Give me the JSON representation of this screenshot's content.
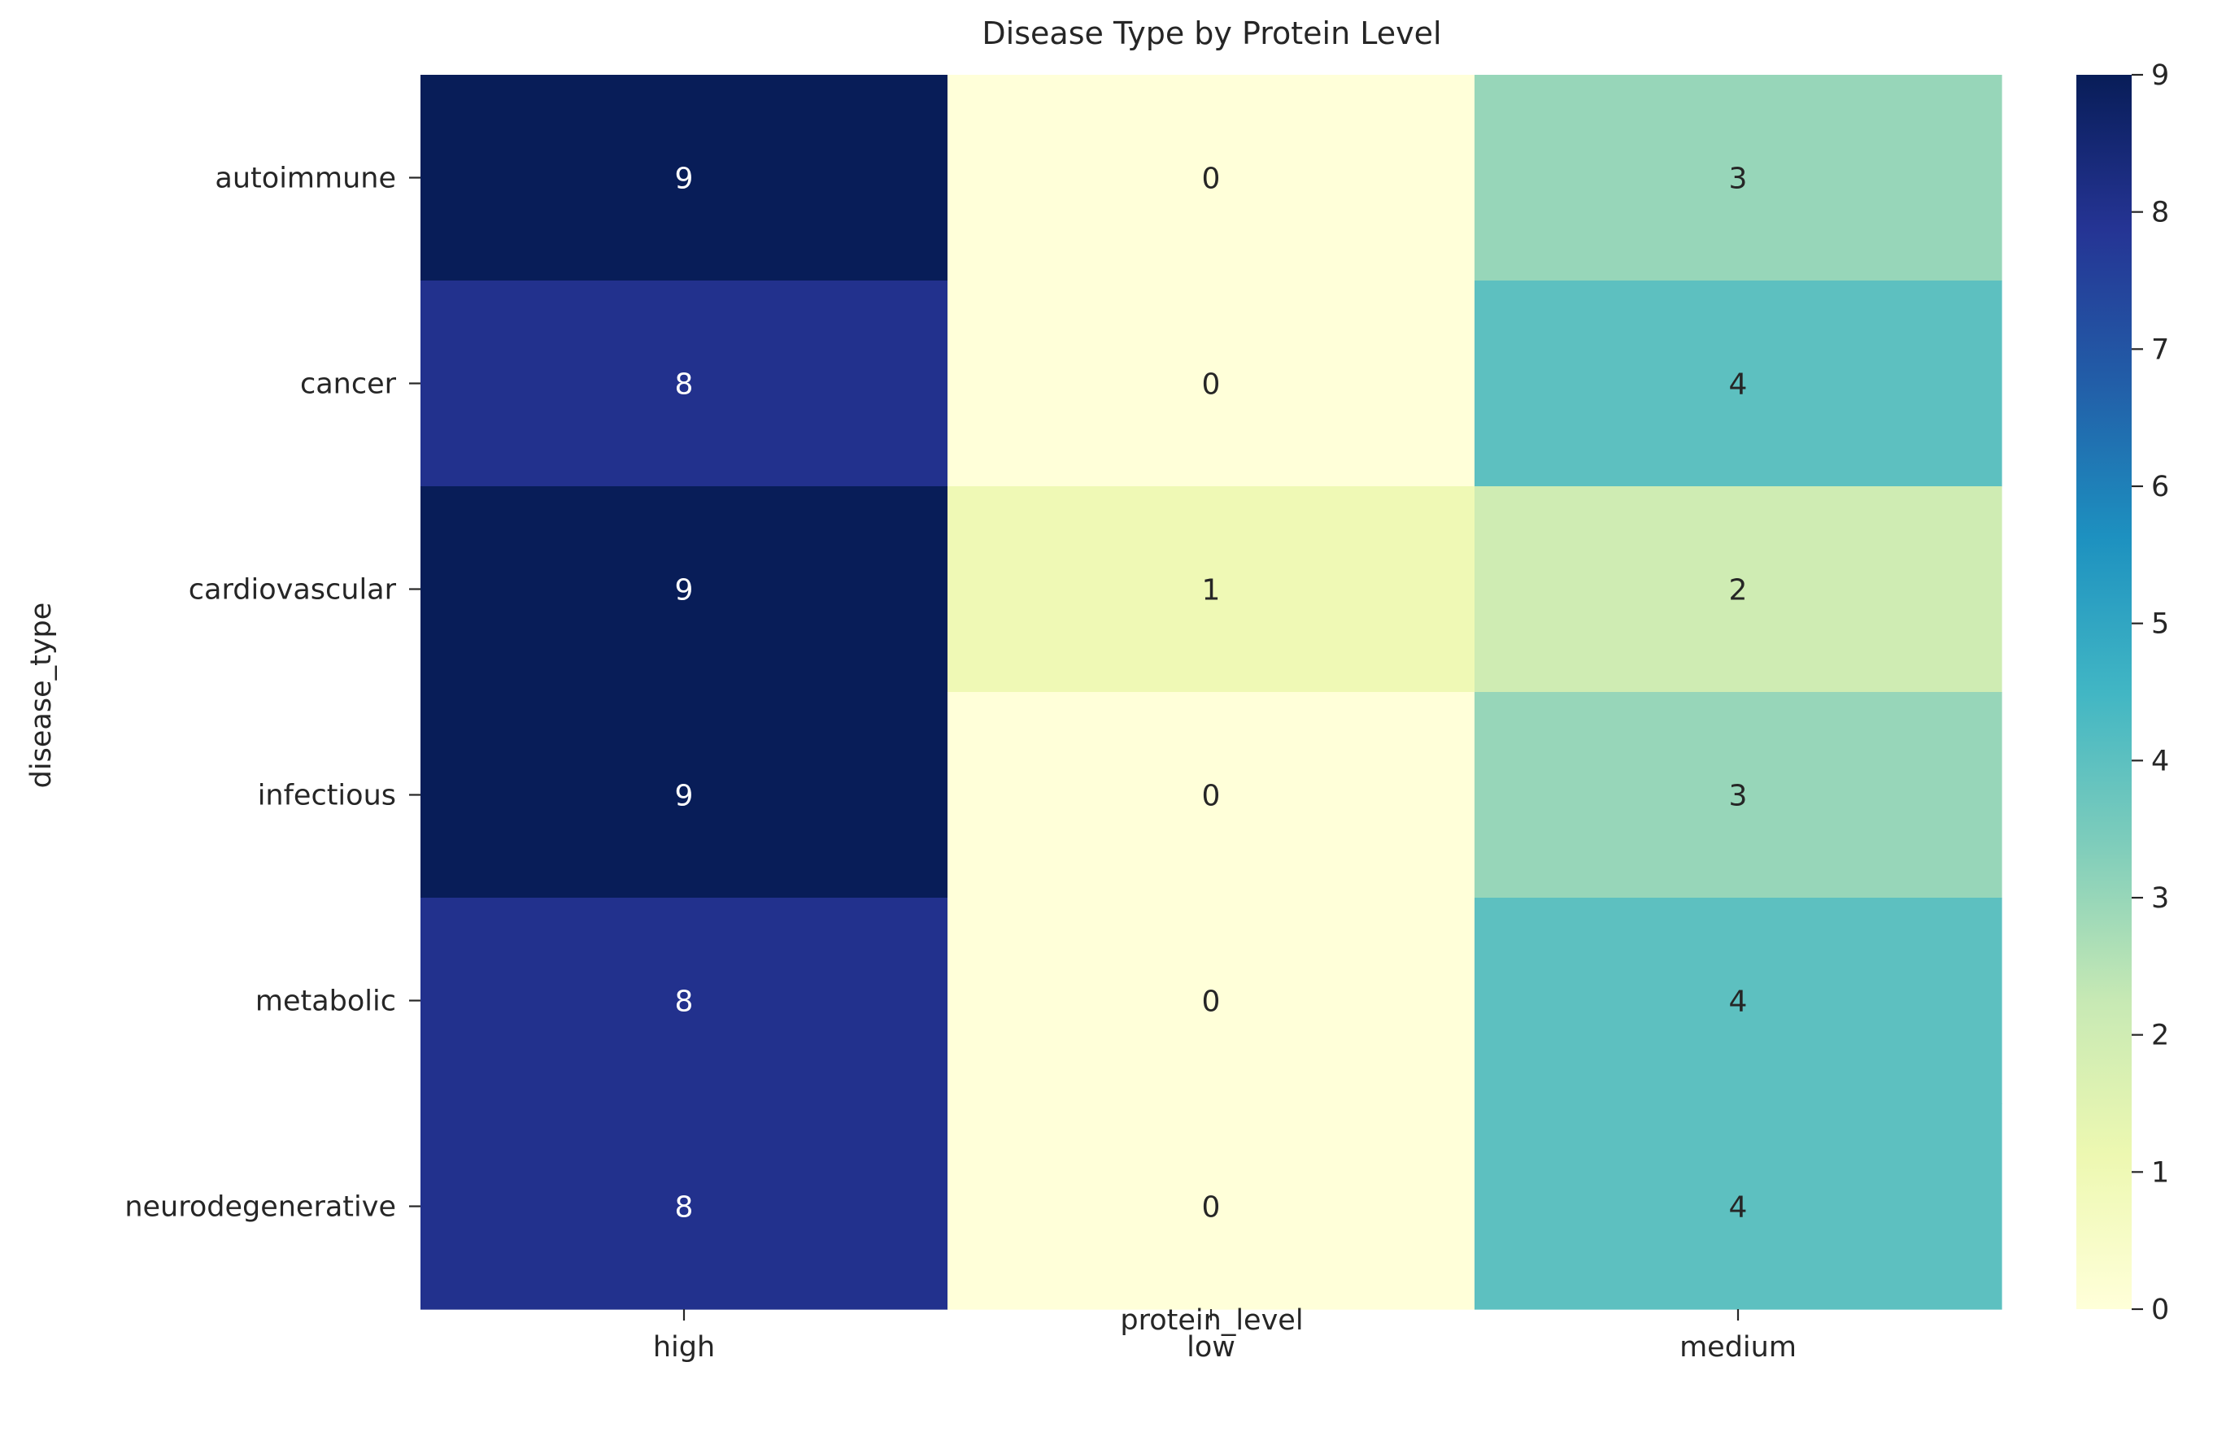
{
  "chart_data": {
    "type": "heatmap",
    "title": "Disease Type by Protein Level",
    "xlabel": "protein_level",
    "ylabel": "disease_type",
    "x_categories": [
      "high",
      "low",
      "medium"
    ],
    "y_categories": [
      "autoimmune",
      "cancer",
      "cardiovascular",
      "infectious",
      "metabolic",
      "neurodegenerative"
    ],
    "values": [
      [
        9,
        0,
        3
      ],
      [
        8,
        0,
        4
      ],
      [
        9,
        1,
        2
      ],
      [
        9,
        0,
        3
      ],
      [
        8,
        0,
        4
      ],
      [
        8,
        0,
        4
      ]
    ],
    "colormap": "YlGnBu",
    "colorbar": {
      "min": 0,
      "max": 9,
      "ticks": [
        0,
        1,
        2,
        3,
        4,
        5,
        6,
        7,
        8,
        9
      ]
    },
    "annotations": true
  }
}
